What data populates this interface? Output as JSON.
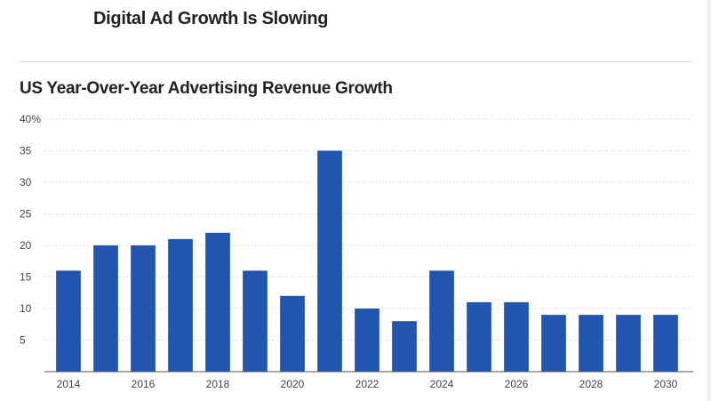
{
  "headline": "Digital Ad Growth Is Slowing",
  "chart_data": {
    "type": "bar",
    "title": "US Year-Over-Year Advertising Revenue Growth",
    "xlabel": "",
    "ylabel": "",
    "ylim": [
      0,
      40
    ],
    "y_ticks": [
      "40%",
      "35",
      "30",
      "25",
      "20",
      "15",
      "10",
      "5"
    ],
    "y_tick_values": [
      40,
      35,
      30,
      25,
      20,
      15,
      10,
      5
    ],
    "categories": [
      "2014",
      "2015",
      "2016",
      "2017",
      "2018",
      "2019",
      "2020",
      "2021",
      "2022",
      "2023",
      "2024",
      "2025",
      "2026",
      "2027",
      "2028",
      "2029",
      "2030"
    ],
    "x_tick_labels": [
      "2014",
      "2016",
      "2018",
      "2020",
      "2022",
      "2024",
      "2026",
      "2028",
      "2030"
    ],
    "values": [
      16,
      20,
      20,
      21,
      22,
      16,
      12,
      35,
      10,
      8,
      16,
      11,
      11,
      9,
      9,
      9,
      9
    ],
    "bar_color": "#2255b0",
    "grid": true
  }
}
